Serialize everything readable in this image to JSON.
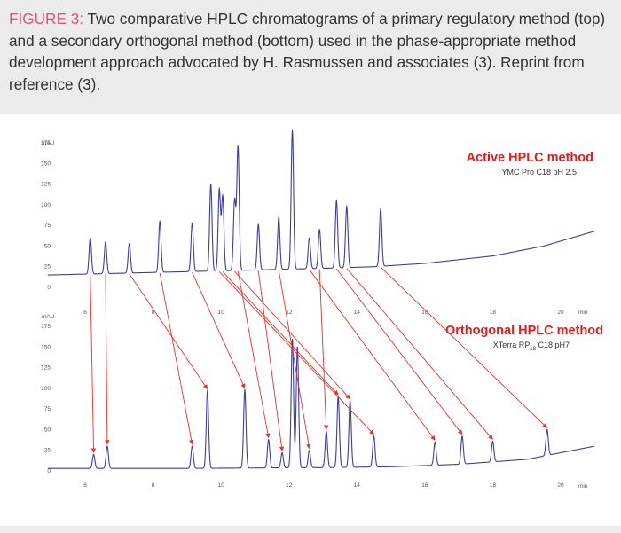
{
  "caption": {
    "label": "FIGURE 3:",
    "text": " Two comparative HPLC chromatograms of a primary regulatory method (top) and a secondary orthogonal method (bottom) used in the phase-appropriate method development approach advocated by H. Rasmussen and associates (3). Reprint from reference (3)."
  },
  "colors": {
    "caption_label": "#e8507e",
    "trace": "#3b3f9e",
    "arrows": "#e8312a",
    "method_title": "#e21b1b"
  },
  "chart_data": [
    {
      "type": "line",
      "title": "Active HPLC method",
      "subtitle": "YMC Pro C18 pH 2.5",
      "ylabel": "mAU",
      "xlabel": "min",
      "xlim": [
        4.9,
        21
      ],
      "ylim": [
        0,
        190
      ],
      "xticks": [
        "6",
        "8",
        "10",
        "12",
        "14",
        "16",
        "18",
        "20"
      ],
      "yticks": [
        "25",
        "50",
        "75",
        "100",
        "125",
        "150",
        "175"
      ],
      "baseline": [
        [
          5.0,
          15
        ],
        [
          7.0,
          17
        ],
        [
          9.0,
          19
        ],
        [
          11.0,
          21
        ],
        [
          13.0,
          23
        ],
        [
          14.5,
          25
        ],
        [
          16.0,
          29
        ],
        [
          18.0,
          38
        ],
        [
          19.5,
          50
        ],
        [
          21.0,
          68
        ]
      ],
      "peaks": [
        {
          "rt": 6.15,
          "height": 60
        },
        {
          "rt": 6.6,
          "height": 55
        },
        {
          "rt": 7.3,
          "height": 53
        },
        {
          "rt": 8.2,
          "height": 80
        },
        {
          "rt": 9.15,
          "height": 78
        },
        {
          "rt": 9.7,
          "height": 125
        },
        {
          "rt": 9.95,
          "height": 118
        },
        {
          "rt": 10.05,
          "height": 110
        },
        {
          "rt": 10.4,
          "height": 105
        },
        {
          "rt": 10.5,
          "height": 170
        },
        {
          "rt": 11.1,
          "height": 76
        },
        {
          "rt": 11.7,
          "height": 85
        },
        {
          "rt": 12.1,
          "height": 190
        },
        {
          "rt": 12.6,
          "height": 60
        },
        {
          "rt": 12.9,
          "height": 70
        },
        {
          "rt": 13.4,
          "height": 105
        },
        {
          "rt": 13.7,
          "height": 98
        },
        {
          "rt": 14.7,
          "height": 95
        }
      ]
    },
    {
      "type": "line",
      "title": "Orthogonal HPLC method",
      "subtitle_main": "XTerra RP",
      "subtitle_sub": "18",
      "subtitle_rest": " C18 pH7",
      "ylabel": "mAU",
      "xlabel": "min",
      "xlim": [
        4.9,
        21
      ],
      "ylim": [
        0,
        190
      ],
      "xticks": [
        "6",
        "8",
        "10",
        "12",
        "14",
        "16",
        "18",
        "20"
      ],
      "yticks": [
        "25",
        "50",
        "75",
        "100",
        "125",
        "150",
        "175"
      ],
      "baseline": [
        [
          5.0,
          3
        ],
        [
          9.0,
          3
        ],
        [
          13.0,
          4
        ],
        [
          15.0,
          5
        ],
        [
          17.0,
          8
        ],
        [
          19.0,
          14
        ],
        [
          21.0,
          30
        ]
      ],
      "peaks": [
        {
          "rt": 6.25,
          "height": 20
        },
        {
          "rt": 6.65,
          "height": 30
        },
        {
          "rt": 9.15,
          "height": 30
        },
        {
          "rt": 9.6,
          "height": 97
        },
        {
          "rt": 10.7,
          "height": 98
        },
        {
          "rt": 11.4,
          "height": 38
        },
        {
          "rt": 11.8,
          "height": 22
        },
        {
          "rt": 12.1,
          "height": 160
        },
        {
          "rt": 12.25,
          "height": 150
        },
        {
          "rt": 12.6,
          "height": 25
        },
        {
          "rt": 13.1,
          "height": 48
        },
        {
          "rt": 13.45,
          "height": 90
        },
        {
          "rt": 13.8,
          "height": 85
        },
        {
          "rt": 14.5,
          "height": 42
        },
        {
          "rt": 16.3,
          "height": 35
        },
        {
          "rt": 17.1,
          "height": 42
        },
        {
          "rt": 18.0,
          "height": 36
        },
        {
          "rt": 19.6,
          "height": 50
        }
      ]
    }
  ],
  "correspondence": [
    [
      6.15,
      6.25
    ],
    [
      6.6,
      6.65
    ],
    [
      7.3,
      9.6
    ],
    [
      8.2,
      9.15
    ],
    [
      9.15,
      10.7
    ],
    [
      9.95,
      14.5
    ],
    [
      10.05,
      13.45
    ],
    [
      10.4,
      13.8
    ],
    [
      10.5,
      11.4
    ],
    [
      11.1,
      11.8
    ],
    [
      11.7,
      12.6
    ],
    [
      12.6,
      16.3
    ],
    [
      12.9,
      13.1
    ],
    [
      13.4,
      17.1
    ],
    [
      13.7,
      18.0
    ],
    [
      14.7,
      19.6
    ]
  ]
}
